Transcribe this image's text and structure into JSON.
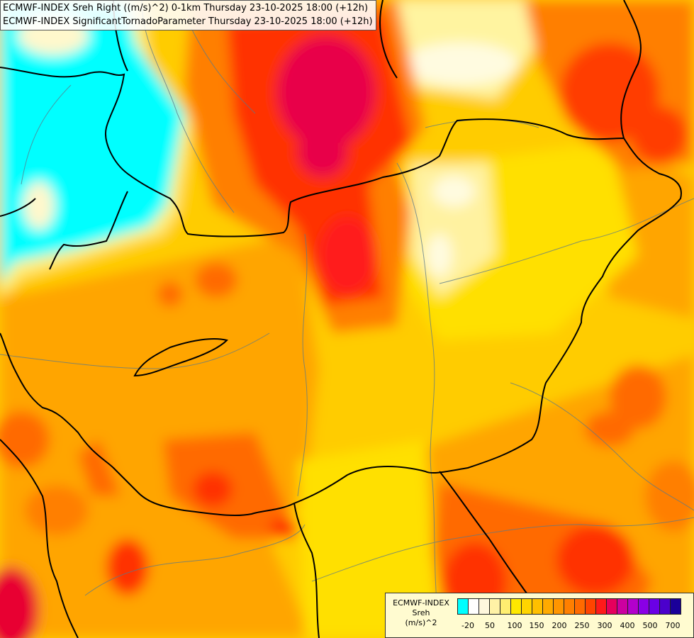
{
  "header": {
    "line1": "ECMWF-INDEX Sreh Right ((m/s)^2) 0-1km Thursday 23-10-2025 18:00 (+12h)",
    "line2": "ECMWF-INDEX SignificantTornadoParameter Thursday 23-10-2025 18:00 (+12h)"
  },
  "legend": {
    "line1": "ECMWF-INDEX",
    "line2": "Sreh",
    "line3": "(m/s)^2",
    "colors": [
      "#00ffff",
      "#ffffff",
      "#fff7dd",
      "#fff2a6",
      "#ffee70",
      "#ffe800",
      "#ffd400",
      "#ffbf00",
      "#ffaa00",
      "#ff9500",
      "#ff7f00",
      "#ff6a00",
      "#ff4400",
      "#ff1a1a",
      "#e6005c",
      "#cc00a0",
      "#b300cc",
      "#8a00e6",
      "#6a00e6",
      "#4b00cc",
      "#1a0099"
    ],
    "ticks": [
      "-20",
      "50",
      "100",
      "150",
      "200",
      "250",
      "300",
      "400",
      "500",
      "700"
    ]
  }
}
